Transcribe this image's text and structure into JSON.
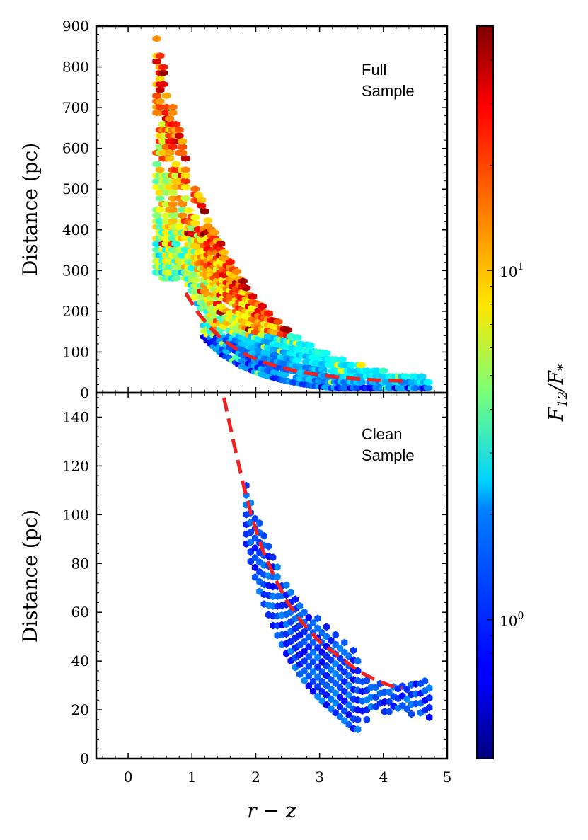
{
  "chart_data": [
    {
      "type": "hexbin",
      "panel": "top",
      "title": "",
      "xlabel": "",
      "ylabel": "Distance (pc)",
      "xlim": [
        -0.5,
        5
      ],
      "ylim": [
        0,
        900
      ],
      "yticks": [
        "0",
        "100",
        "200",
        "300",
        "400",
        "500",
        "600",
        "700",
        "800",
        "900"
      ],
      "yticks_values": [
        0,
        100,
        200,
        300,
        400,
        500,
        600,
        700,
        800,
        900
      ],
      "annotation": [
        "Full",
        "Sample"
      ],
      "fit_curve": {
        "name": "dashed red fit",
        "color": "#ee2222",
        "x": [
          0.9,
          1.1,
          1.3,
          1.5,
          1.8,
          2.1,
          2.4,
          2.7,
          3.0,
          3.3,
          3.6,
          3.9,
          4.1,
          4.3
        ],
        "y": [
          245,
          195,
          158,
          128,
          97,
          76,
          62,
          51,
          44,
          38,
          34,
          31,
          30,
          29
        ]
      },
      "bins_note": "cells colored by F12/F* (log scale); bulk below ~120 pc is ~1, outliers up to ~30"
    },
    {
      "type": "hexbin",
      "panel": "bottom",
      "title": "",
      "xlabel": "r − z",
      "ylabel": "Distance (pc)",
      "xlim": [
        -0.5,
        5
      ],
      "ylim": [
        0,
        150
      ],
      "xticks": [
        "0",
        "1",
        "2",
        "3",
        "4",
        "5"
      ],
      "xticks_values": [
        0,
        1,
        2,
        3,
        4,
        5
      ],
      "yticks": [
        "0",
        "20",
        "40",
        "60",
        "80",
        "100",
        "120",
        "140"
      ],
      "yticks_values": [
        0,
        20,
        40,
        60,
        80,
        100,
        120,
        140
      ],
      "annotation": [
        "Clean",
        "Sample"
      ],
      "fit_curve": {
        "name": "dashed red fit",
        "color": "#ee2222",
        "x": [
          1.5,
          1.65,
          1.8,
          1.95,
          2.1,
          2.3,
          2.5,
          2.75,
          3.0,
          3.3,
          3.6,
          3.9,
          4.1,
          4.3
        ],
        "y": [
          148,
          130,
          113,
          98,
          86,
          74,
          64,
          55,
          48,
          42,
          36,
          32,
          30,
          29
        ]
      }
    }
  ],
  "colorbar": {
    "label": "F12/F*",
    "scale": "log",
    "vlim": [
      0.4,
      50
    ],
    "ticks": [
      {
        "value": 1,
        "base": "10",
        "exp": "0"
      },
      {
        "value": 10,
        "base": "10",
        "exp": "1"
      }
    ]
  }
}
